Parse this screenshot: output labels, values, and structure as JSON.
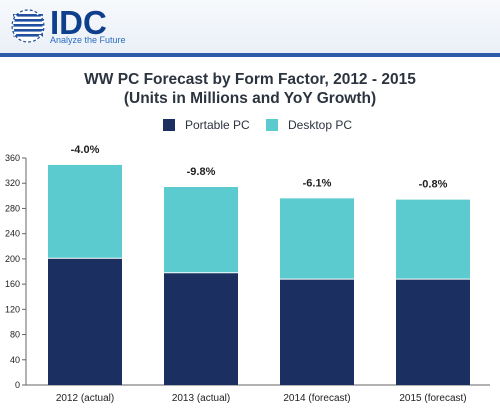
{
  "header": {
    "logo_text": "IDC",
    "tagline": "Analyze the Future"
  },
  "chart_data": {
    "type": "bar",
    "stacked": true,
    "title_line1": "WW PC Forecast by Form Factor, 2012 - 2015",
    "title_line2": "(Units in Millions and YoY Growth)",
    "categories": [
      "2012 (actual)",
      "2013 (actual)",
      "2014 (forecast)",
      "2015 (forecast)"
    ],
    "series": [
      {
        "name": "Portable PC",
        "color": "#1b3060",
        "values": [
          201,
          178,
          168,
          168
        ]
      },
      {
        "name": "Desktop PC",
        "color": "#5ccbd0",
        "values": [
          148,
          136,
          128,
          126
        ]
      }
    ],
    "growth_labels": [
      "-4.0%",
      "-9.8%",
      "-6.1%",
      "-0.8%"
    ],
    "ylim": [
      0,
      360
    ],
    "yticks": [
      0,
      40,
      80,
      120,
      160,
      200,
      240,
      280,
      320,
      360
    ],
    "grid": false,
    "legend_position": "top"
  }
}
